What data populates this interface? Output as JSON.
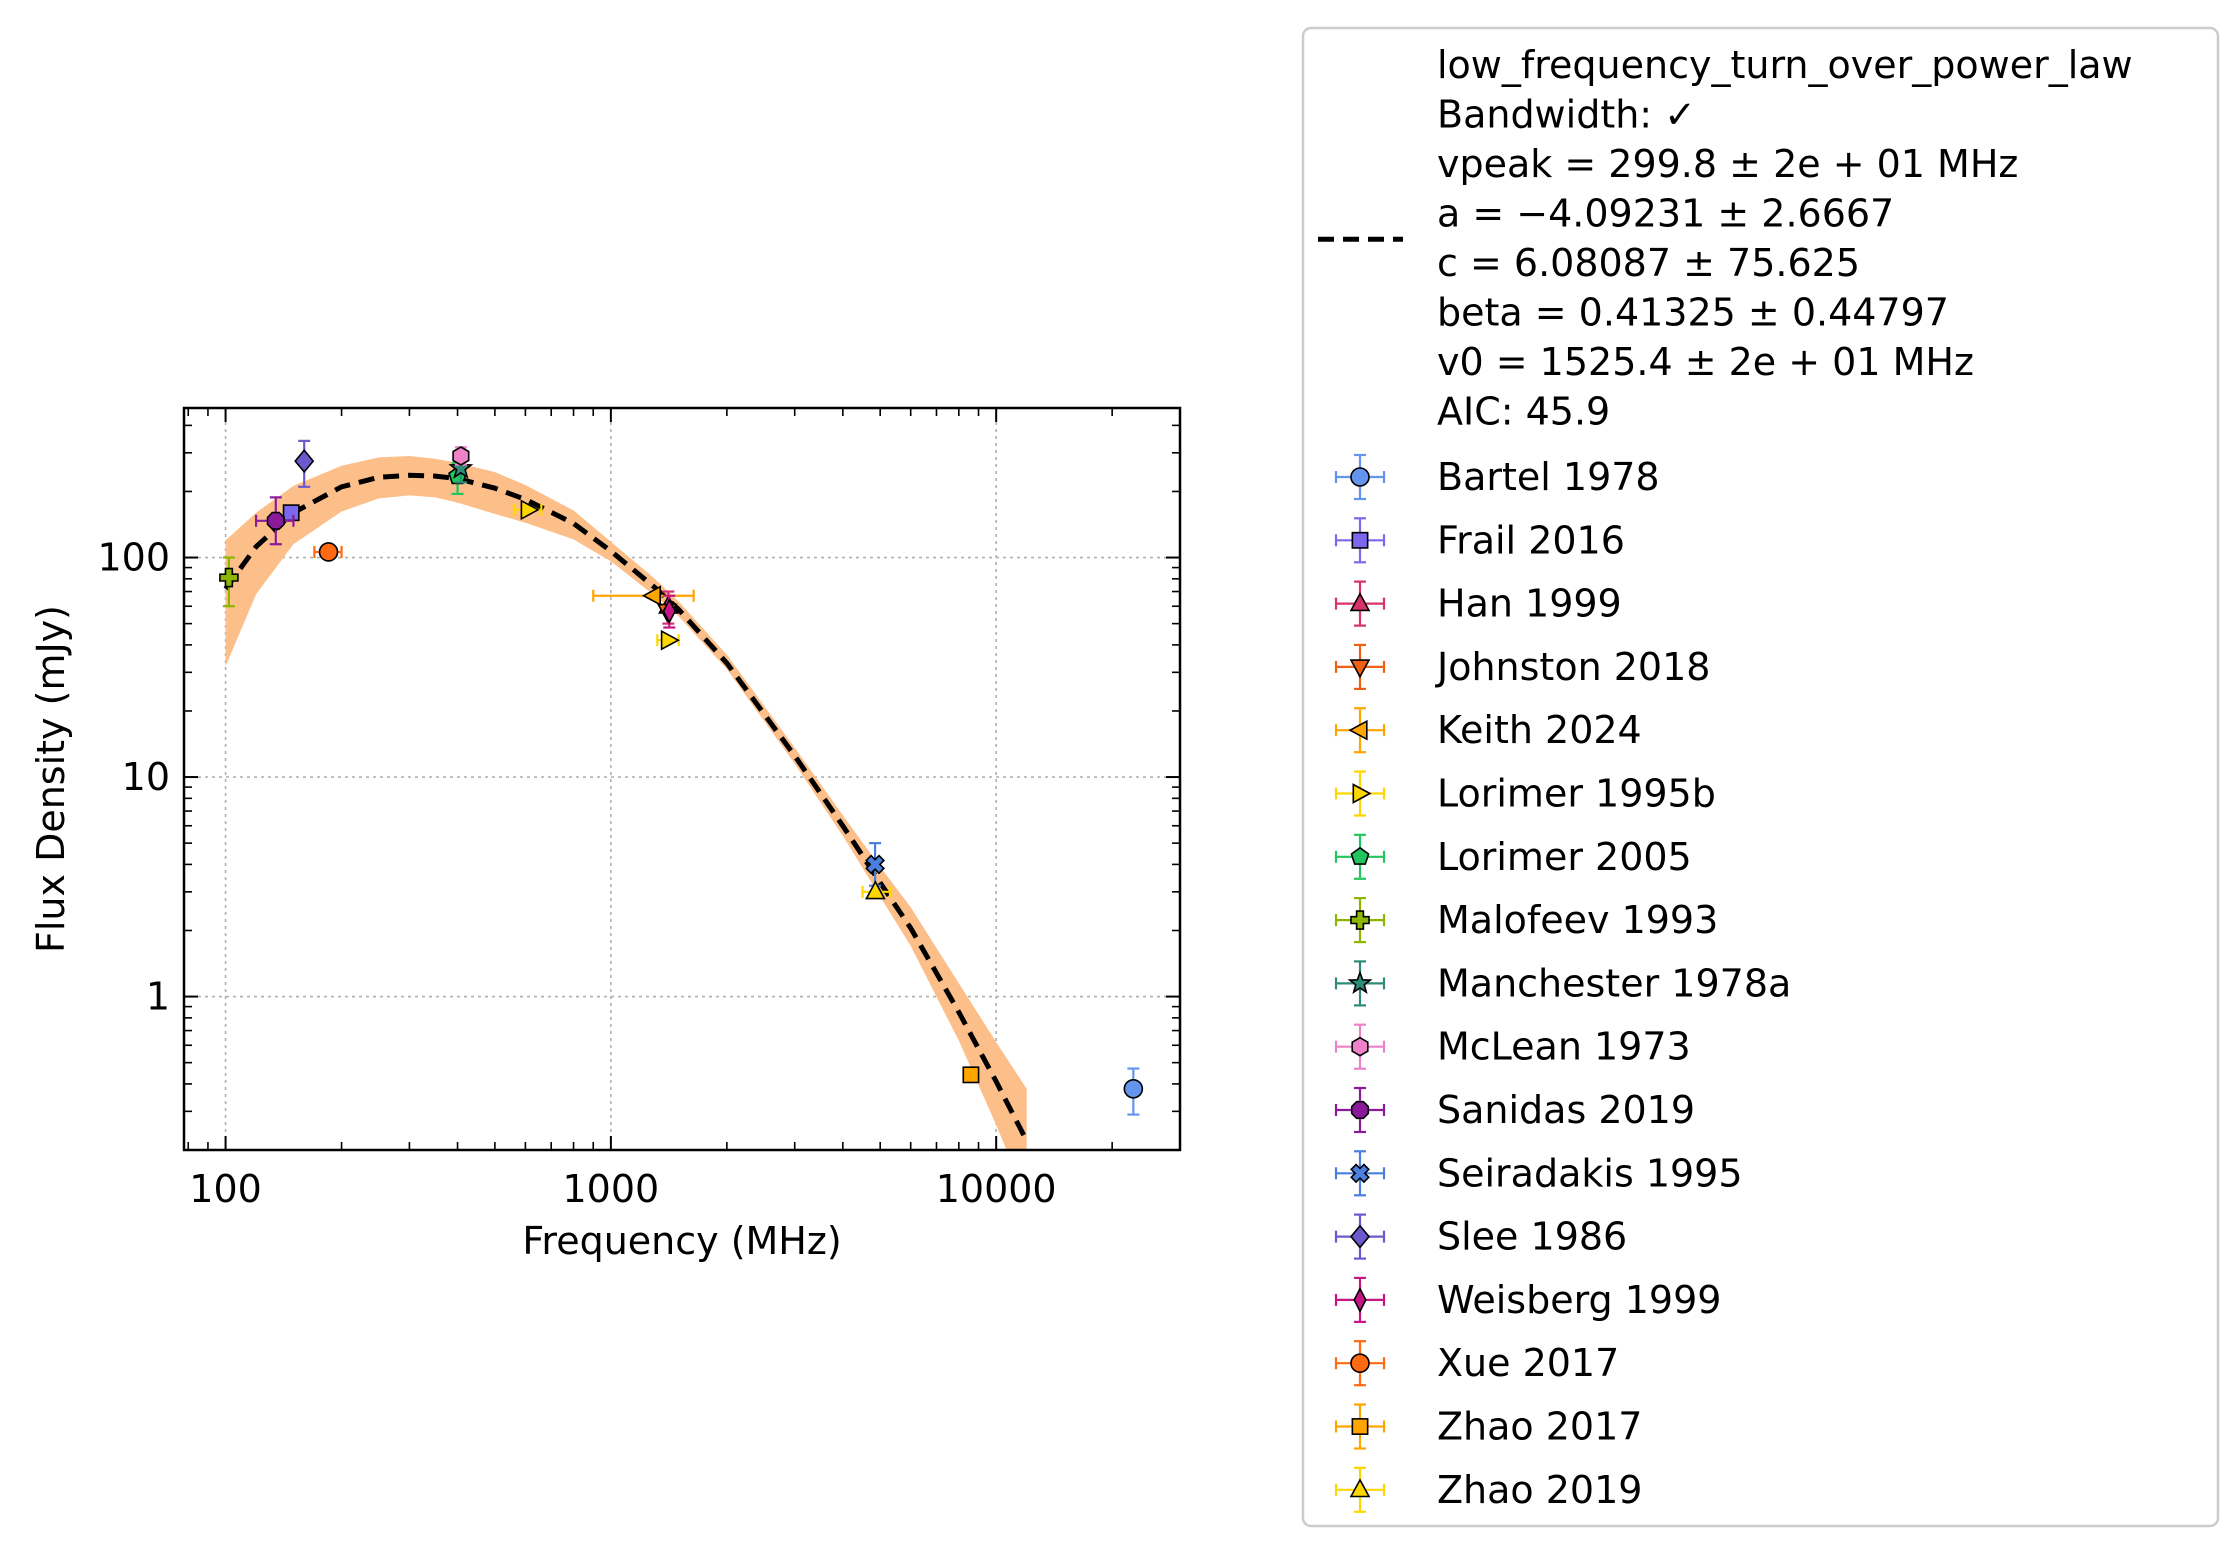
{
  "chart_data": {
    "type": "scatter",
    "x_scale": "log",
    "y_scale": "log",
    "xlabel": "Frequency (MHz)",
    "ylabel": "Flux Density (mJy)",
    "xlim": [
      78,
      30000
    ],
    "ylim": [
      0.2,
      480
    ],
    "x_ticks": [
      {
        "value": 100,
        "label": "100"
      },
      {
        "value": 1000,
        "label": "1000"
      },
      {
        "value": 10000,
        "label": "10000"
      }
    ],
    "y_ticks": [
      {
        "value": 1,
        "label": "1"
      },
      {
        "value": 10,
        "label": "10"
      },
      {
        "value": 100,
        "label": "100"
      }
    ],
    "grid": true,
    "legend_placement": "outside right",
    "fit": {
      "name": "low_frequency_turn_over_power_law",
      "label_lines": [
        "low_frequency_turn_over_power_law",
        "Bandwidth: ✓",
        "vpeak = 299.8 ± 2e + 01 MHz",
        "a = −4.09231 ± 2.6667",
        "c = 6.08087 ± 75.625",
        "beta = 0.41325 ± 0.44797",
        "v0 = 1525.4 ± 2e + 01 MHz",
        "AIC: 45.9"
      ],
      "line_color": "#000000",
      "band_color": "#fdbf8a",
      "curve": {
        "x": [
          100,
          120,
          150,
          200,
          250,
          300,
          350,
          400,
          500,
          600,
          800,
          1000,
          1300,
          1500,
          2000,
          3000,
          4000,
          5000,
          6000,
          8000,
          10000,
          12000
        ],
        "y": [
          72,
          112,
          160,
          210,
          232,
          237,
          235,
          229,
          207,
          184,
          143,
          107,
          73,
          58,
          33,
          12.5,
          6.0,
          3.3,
          2.05,
          0.85,
          0.41,
          0.22
        ]
      },
      "band": {
        "x": [
          100,
          120,
          150,
          200,
          250,
          300,
          350,
          400,
          500,
          600,
          800,
          1000,
          1300,
          1500,
          2000,
          3000,
          4000,
          5000,
          6000,
          8000,
          10000,
          12000
        ],
        "lower": [
          32,
          68,
          115,
          162,
          186,
          192,
          188,
          178,
          158,
          144,
          121,
          96,
          67,
          54,
          31,
          11.5,
          5.4,
          2.85,
          1.7,
          0.63,
          0.26,
          0.12
        ],
        "upper": [
          120,
          160,
          212,
          262,
          286,
          290,
          282,
          270,
          245,
          214,
          164,
          118,
          80,
          63,
          36,
          13.6,
          6.7,
          3.9,
          2.55,
          1.15,
          0.62,
          0.38
        ]
      }
    },
    "series": [
      {
        "name": "Bartel 1978",
        "marker": "circle",
        "color": "#6495ed",
        "points": [
          {
            "x": 22700,
            "y": 0.38,
            "yerr": [
              0.29,
              0.47
            ]
          }
        ]
      },
      {
        "name": "Frail 2016",
        "marker": "square",
        "color": "#7b68ee",
        "points": [
          {
            "x": 148,
            "y": 160
          }
        ]
      },
      {
        "name": "Han 1999",
        "marker": "triangle-up",
        "color": "#d6336c",
        "points": [
          {
            "x": 1410,
            "y": 60,
            "yerr": [
              50,
              70
            ]
          }
        ]
      },
      {
        "name": "Johnston 2018",
        "marker": "triangle-down",
        "color": "#f06010",
        "points": [
          {
            "x": 1400,
            "y": 57
          }
        ]
      },
      {
        "name": "Keith 2024",
        "marker": "triangle-left",
        "color": "#ffa500",
        "points": [
          {
            "x": 1290,
            "y": 67,
            "xerr": [
              900,
              1640
            ]
          }
        ]
      },
      {
        "name": "Lorimer 1995b",
        "marker": "triangle-right",
        "color": "#ffd700",
        "points": [
          {
            "x": 610,
            "y": 165,
            "xerr": [
              560,
              660
            ]
          },
          {
            "x": 1410,
            "y": 42,
            "xerr": [
              1320,
              1500
            ]
          }
        ]
      },
      {
        "name": "Lorimer 2005",
        "marker": "pentagon",
        "color": "#22c55e",
        "points": [
          {
            "x": 400,
            "y": 235,
            "yerr": [
              195,
              270
            ]
          }
        ]
      },
      {
        "name": "Malofeev 1993",
        "marker": "plus",
        "color": "#8db600",
        "points": [
          {
            "x": 102,
            "y": 81,
            "yerr": [
              60,
              100
            ]
          }
        ]
      },
      {
        "name": "Manchester 1978a",
        "marker": "star",
        "color": "#2e8b7a",
        "points": [
          {
            "x": 408,
            "y": 255,
            "yerr": [
              220,
              295
            ]
          }
        ]
      },
      {
        "name": "McLean 1973",
        "marker": "hexagon",
        "color": "#ee82c8",
        "points": [
          {
            "x": 408,
            "y": 290,
            "yerr": [
              265,
              318
            ]
          }
        ]
      },
      {
        "name": "Sanidas 2019",
        "marker": "octagon",
        "color": "#8b1a9b",
        "points": [
          {
            "x": 135,
            "y": 147,
            "yerr": [
              115,
              188
            ],
            "xerr": [
              120,
              150
            ]
          }
        ]
      },
      {
        "name": "Seiradakis 1995",
        "marker": "x",
        "color": "#4a7fe0",
        "points": [
          {
            "x": 4850,
            "y": 4.0,
            "yerr": [
              3.2,
              5.0
            ],
            "xerr": [
              4700,
              5000
            ]
          }
        ]
      },
      {
        "name": "Slee 1986",
        "marker": "diamond",
        "color": "#6a5acd",
        "points": [
          {
            "x": 160,
            "y": 275,
            "yerr": [
              210,
              340
            ]
          }
        ]
      },
      {
        "name": "Weisberg 1999",
        "marker": "thin-diamond",
        "color": "#c71585",
        "points": [
          {
            "x": 1418,
            "y": 57,
            "yerr": [
              48,
              67
            ]
          }
        ]
      },
      {
        "name": "Xue 2017",
        "marker": "circle",
        "color": "#ff6a13",
        "points": [
          {
            "x": 185,
            "y": 106,
            "xerr": [
              170,
              200
            ]
          }
        ]
      },
      {
        "name": "Zhao 2017",
        "marker": "square",
        "color": "#ffa500",
        "points": [
          {
            "x": 8600,
            "y": 0.44
          }
        ]
      },
      {
        "name": "Zhao 2019",
        "marker": "triangle-up",
        "color": "#ffd700",
        "points": [
          {
            "x": 4860,
            "y": 3.0,
            "xerr": [
              4500,
              5300
            ]
          }
        ]
      }
    ]
  }
}
